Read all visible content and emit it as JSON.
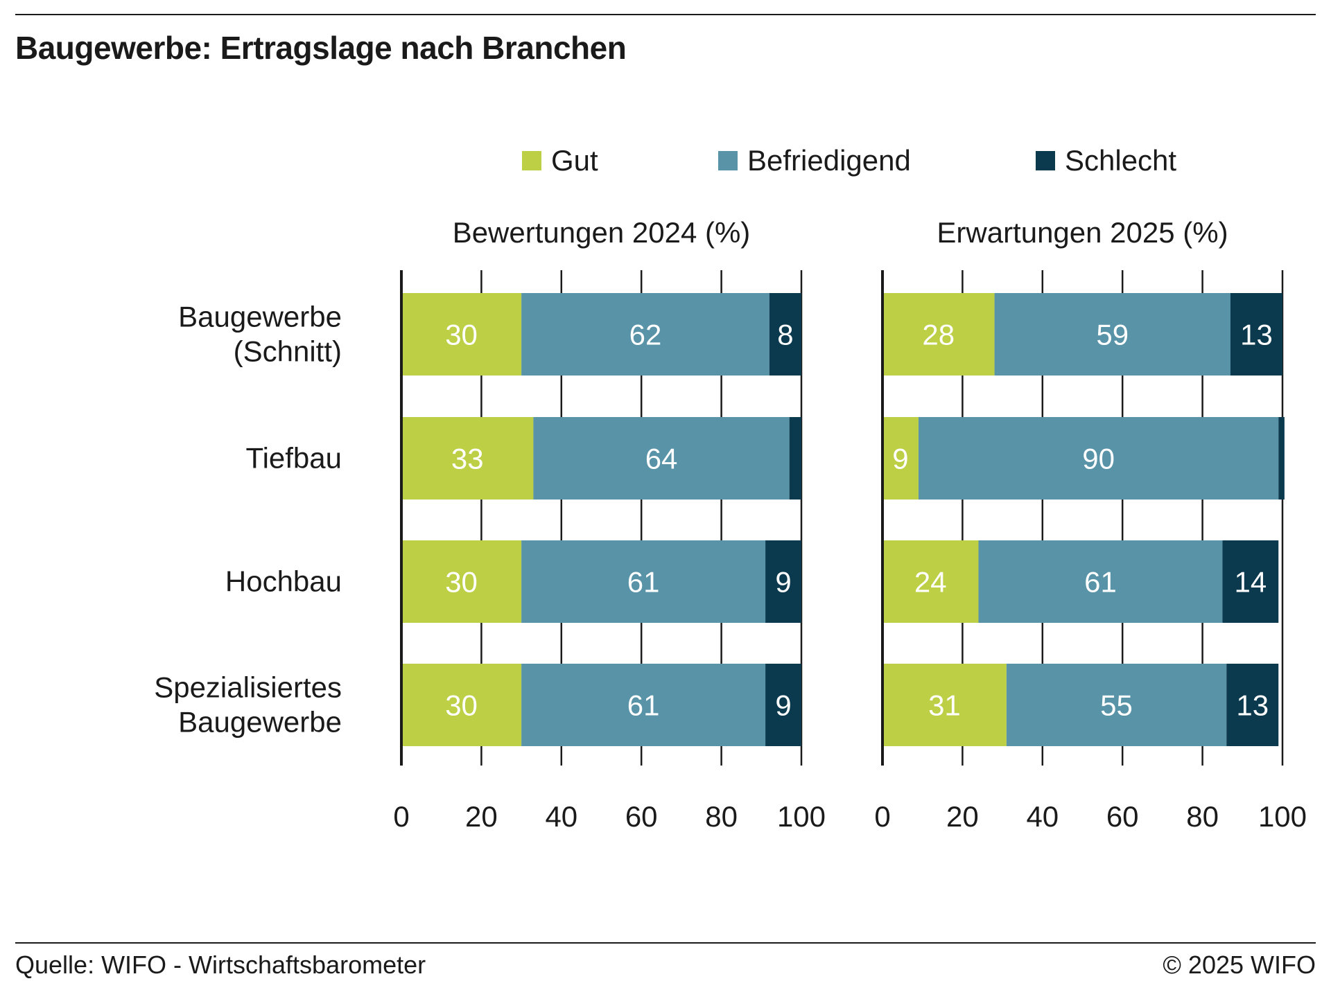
{
  "title": "Baugewerbe: Ertragslage nach Branchen",
  "source": "Quelle: WIFO - Wirtschaftsbarometer",
  "copyright": "© 2025 WIFO",
  "chart_data": {
    "type": "bar",
    "orientation": "horizontal",
    "stacked": true,
    "grid": true,
    "legend_position": "top",
    "categories": [
      "Baugewerbe\n(Schnitt)",
      "Tiefbau",
      "Hochbau",
      "Spezialisiertes\nBaugewerbe"
    ],
    "series_meta": [
      {
        "name": "Gut",
        "color": "#bdcf45",
        "label_color": "#ffffff"
      },
      {
        "name": "Befriedigend",
        "color": "#5893a8",
        "label_color": "#ffffff"
      },
      {
        "name": "Schlecht",
        "color": "#0b3a4f",
        "label_color": "#ffffff"
      }
    ],
    "panels": [
      {
        "title": "Bewertungen 2024 (%)",
        "xlim": [
          0,
          100
        ],
        "xticks": [
          0,
          20,
          40,
          60,
          80,
          100
        ],
        "series": [
          {
            "name": "Gut",
            "values": [
              30,
              33,
              30,
              30
            ]
          },
          {
            "name": "Befriedigend",
            "values": [
              62,
              64,
              61,
              61
            ]
          },
          {
            "name": "Schlecht",
            "values": [
              8,
              3,
              9,
              9
            ]
          }
        ],
        "labels": [
          [
            "30",
            "62",
            "8"
          ],
          [
            "33",
            "64",
            ""
          ],
          [
            "30",
            "61",
            "9"
          ],
          [
            "30",
            "61",
            "9"
          ]
        ]
      },
      {
        "title": "Erwartungen 2025 (%)",
        "xlim": [
          0,
          100
        ],
        "xticks": [
          0,
          20,
          40,
          60,
          80,
          100
        ],
        "series": [
          {
            "name": "Gut",
            "values": [
              28,
              9,
              24,
              31
            ]
          },
          {
            "name": "Befriedigend",
            "values": [
              59,
              90,
              61,
              55
            ]
          },
          {
            "name": "Schlecht",
            "values": [
              13,
              1.5,
              14,
              13
            ]
          }
        ],
        "labels": [
          [
            "28",
            "59",
            "13"
          ],
          [
            "9",
            "90",
            ""
          ],
          [
            "24",
            "61",
            "14"
          ],
          [
            "31",
            "55",
            "13"
          ]
        ]
      }
    ]
  }
}
